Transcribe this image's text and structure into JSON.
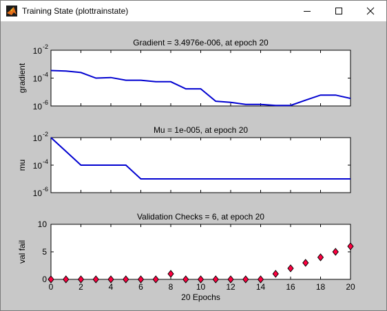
{
  "window": {
    "title": "Training State (plottrainstate)"
  },
  "colors": {
    "figure_bg": "#c8c8c8",
    "axes_bg": "#ffffff",
    "line": "#0000d0",
    "marker_fill": "#ff0040",
    "marker_edge": "#000000"
  },
  "chart_data": [
    {
      "type": "line",
      "title": "Gradient = 3.4976e-006, at epoch 20",
      "ylabel": "gradient",
      "yscale": "log",
      "ylim": [
        1e-06,
        0.01
      ],
      "xlim": [
        0,
        20
      ],
      "yticks": [
        {
          "base": "10",
          "exp": "-6"
        },
        {
          "base": "10",
          "exp": "-4"
        },
        {
          "base": "10",
          "exp": "-2"
        }
      ],
      "series": [
        {
          "x": [
            0,
            1,
            2,
            3,
            4,
            5,
            6,
            7,
            8,
            9,
            10,
            11,
            12,
            13,
            14,
            15,
            16,
            17,
            18,
            19,
            20
          ],
          "values": [
            0.00035,
            0.00032,
            0.00025,
            0.0001,
            0.00011,
            7e-05,
            7e-05,
            5.5e-05,
            5.5e-05,
            1.7e-05,
            1.7e-05,
            2.2e-06,
            1.8e-06,
            1.3e-06,
            1.3e-06,
            1.1e-06,
            1.1e-06,
            2.6e-06,
            6e-06,
            6e-06,
            3.5e-06
          ]
        }
      ]
    },
    {
      "type": "line",
      "title": "Mu = 1e-005, at epoch 20",
      "ylabel": "mu",
      "yscale": "log",
      "ylim": [
        1e-06,
        0.01
      ],
      "xlim": [
        0,
        20
      ],
      "yticks": [
        {
          "base": "10",
          "exp": "-6"
        },
        {
          "base": "10",
          "exp": "-4"
        },
        {
          "base": "10",
          "exp": "-2"
        }
      ],
      "series": [
        {
          "x": [
            0,
            1,
            2,
            3,
            4,
            5,
            6,
            7,
            8,
            9,
            10,
            11,
            12,
            13,
            14,
            15,
            16,
            17,
            18,
            19,
            20
          ],
          "values": [
            0.01,
            0.001,
            0.0001,
            0.0001,
            0.0001,
            0.0001,
            1e-05,
            1e-05,
            1e-05,
            1e-05,
            1e-05,
            1e-05,
            1e-05,
            1e-05,
            1e-05,
            1e-05,
            1e-05,
            1e-05,
            1e-05,
            1e-05,
            1e-05
          ]
        }
      ]
    },
    {
      "type": "scatter",
      "title": "Validation Checks = 6, at epoch 20",
      "ylabel": "val fail",
      "xlabel": "20 Epochs",
      "ylim": [
        0,
        10
      ],
      "xlim": [
        0,
        20
      ],
      "yticks": [
        "0",
        "5",
        "10"
      ],
      "xticks": [
        "0",
        "2",
        "4",
        "6",
        "8",
        "10",
        "12",
        "14",
        "16",
        "18",
        "20"
      ],
      "series": [
        {
          "x": [
            0,
            1,
            2,
            3,
            4,
            5,
            6,
            7,
            8,
            9,
            10,
            11,
            12,
            13,
            14,
            15,
            16,
            17,
            18,
            19,
            20
          ],
          "values": [
            0,
            0,
            0,
            0,
            0,
            0,
            0,
            0,
            1,
            0,
            0,
            0,
            0,
            0,
            0,
            1,
            2,
            3,
            4,
            5,
            6
          ]
        }
      ]
    }
  ]
}
